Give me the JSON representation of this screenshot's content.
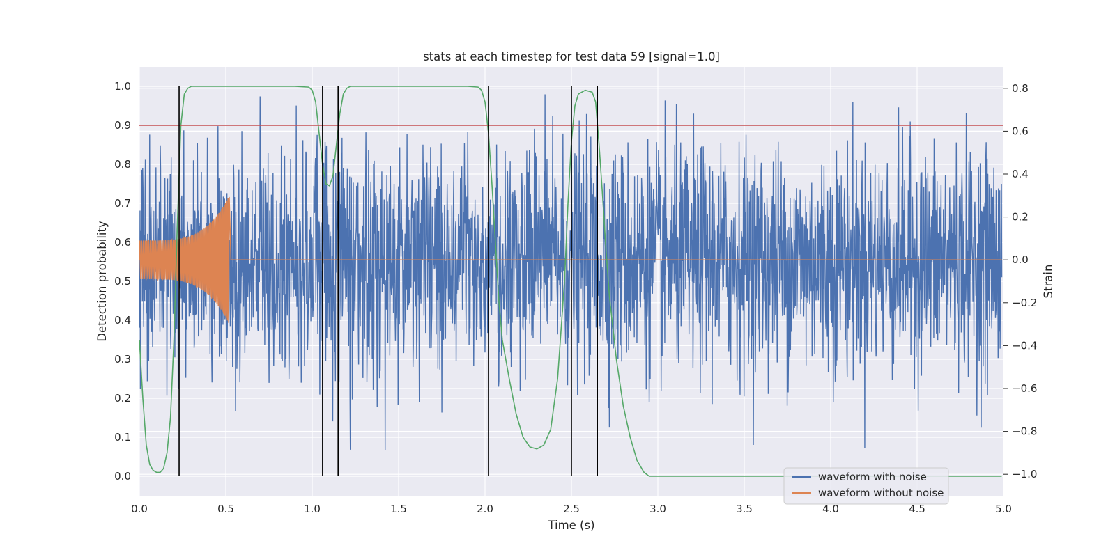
{
  "chart_data": {
    "type": "line",
    "title": "stats at each timestep for test data 59 [signal=1.0]",
    "xlabel": "Time (s)",
    "ylabel_left": "Detection probability",
    "ylabel_right": "Strain",
    "xlim": [
      0.0,
      5.0
    ],
    "ylim_left": [
      -0.05,
      1.05
    ],
    "ylim_right": [
      -1.1,
      0.9
    ],
    "x_ticks": [
      "0.0",
      "0.5",
      "1.0",
      "1.5",
      "2.0",
      "2.5",
      "3.0",
      "3.5",
      "4.0",
      "4.5",
      "5.0"
    ],
    "y_left_ticks": [
      "0.0",
      "0.1",
      "0.2",
      "0.3",
      "0.4",
      "0.5",
      "0.6",
      "0.7",
      "0.8",
      "0.9",
      "1.0"
    ],
    "y_right_ticks": [
      "−1.0",
      "−0.8",
      "−0.6",
      "−0.4",
      "−0.2",
      "0.0",
      "0.2",
      "0.4",
      "0.6",
      "0.8"
    ],
    "grid": true,
    "legend_position": "lower-right",
    "series": [
      {
        "name": "waveform with noise",
        "axis": "right",
        "color": "#4c72b0",
        "description_values": "noisy strain oscillating roughly between -0.95 and 0.8"
      },
      {
        "name": "waveform without noise",
        "axis": "right",
        "color": "#dd8452",
        "chirp": {
          "t_start": 0.0,
          "t_merger": 0.52,
          "amp_start": 0.09,
          "amp_peak": 0.3,
          "post_merger_value": 0.0
        }
      },
      {
        "name": "",
        "axis": "left",
        "color": "#55a868",
        "points": [
          [
            0.0,
            0.35
          ],
          [
            0.02,
            0.2
          ],
          [
            0.04,
            0.08
          ],
          [
            0.06,
            0.03
          ],
          [
            0.08,
            0.015
          ],
          [
            0.1,
            0.01
          ],
          [
            0.12,
            0.01
          ],
          [
            0.14,
            0.02
          ],
          [
            0.16,
            0.06
          ],
          [
            0.18,
            0.15
          ],
          [
            0.2,
            0.35
          ],
          [
            0.22,
            0.65
          ],
          [
            0.24,
            0.9
          ],
          [
            0.26,
            0.98
          ],
          [
            0.28,
            0.995
          ],
          [
            0.3,
            1.0
          ],
          [
            0.9,
            1.0
          ],
          [
            0.98,
            0.998
          ],
          [
            1.0,
            0.99
          ],
          [
            1.02,
            0.96
          ],
          [
            1.04,
            0.88
          ],
          [
            1.06,
            0.8
          ],
          [
            1.08,
            0.75
          ],
          [
            1.1,
            0.745
          ],
          [
            1.12,
            0.77
          ],
          [
            1.14,
            0.85
          ],
          [
            1.16,
            0.93
          ],
          [
            1.18,
            0.98
          ],
          [
            1.2,
            0.995
          ],
          [
            1.22,
            1.0
          ],
          [
            1.9,
            1.0
          ],
          [
            1.96,
            0.998
          ],
          [
            1.98,
            0.99
          ],
          [
            2.0,
            0.96
          ],
          [
            2.02,
            0.88
          ],
          [
            2.04,
            0.75
          ],
          [
            2.06,
            0.6
          ],
          [
            2.08,
            0.45
          ],
          [
            2.1,
            0.35
          ],
          [
            2.14,
            0.25
          ],
          [
            2.18,
            0.16
          ],
          [
            2.22,
            0.1
          ],
          [
            2.26,
            0.075
          ],
          [
            2.3,
            0.07
          ],
          [
            2.34,
            0.08
          ],
          [
            2.38,
            0.12
          ],
          [
            2.42,
            0.25
          ],
          [
            2.46,
            0.5
          ],
          [
            2.48,
            0.7
          ],
          [
            2.5,
            0.86
          ],
          [
            2.52,
            0.95
          ],
          [
            2.54,
            0.98
          ],
          [
            2.58,
            0.99
          ],
          [
            2.62,
            0.985
          ],
          [
            2.64,
            0.96
          ],
          [
            2.66,
            0.85
          ],
          [
            2.68,
            0.72
          ],
          [
            2.7,
            0.58
          ],
          [
            2.72,
            0.46
          ],
          [
            2.76,
            0.3
          ],
          [
            2.8,
            0.18
          ],
          [
            2.84,
            0.1
          ],
          [
            2.88,
            0.04
          ],
          [
            2.92,
            0.01
          ],
          [
            2.95,
            0.0
          ],
          [
            4.99,
            0.0
          ]
        ]
      },
      {
        "name": "",
        "axis": "left",
        "color": "#c44e52",
        "hline": 0.9
      }
    ],
    "vlines": [
      {
        "x": 0.23,
        "ymin": 0.0,
        "ymax": 1.0,
        "color": "#000000"
      },
      {
        "x": 1.06,
        "ymin": 0.0,
        "ymax": 1.0,
        "color": "#000000"
      },
      {
        "x": 1.15,
        "ymin": 0.0,
        "ymax": 1.0,
        "color": "#000000"
      },
      {
        "x": 2.02,
        "ymin": 0.0,
        "ymax": 1.0,
        "color": "#000000"
      },
      {
        "x": 2.5,
        "ymin": 0.0,
        "ymax": 1.0,
        "color": "#000000"
      },
      {
        "x": 2.65,
        "ymin": 0.0,
        "ymax": 1.0,
        "color": "#000000"
      }
    ],
    "colors": {
      "plot_background": "#eaeaf2",
      "grid": "#ffffff"
    }
  }
}
